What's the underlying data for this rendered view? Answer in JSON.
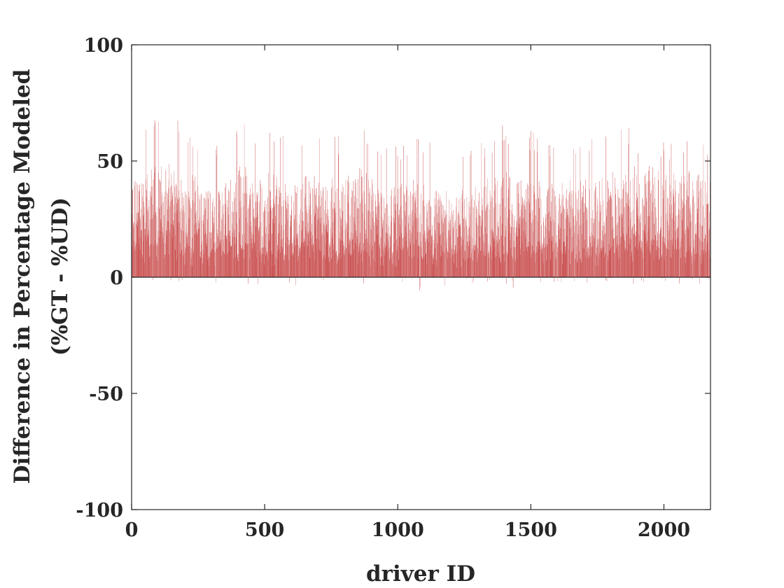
{
  "chart_data": {
    "type": "bar",
    "title": "",
    "xlabel": "driver ID",
    "ylabel": [
      "Difference in Percentage Modeled",
      "(%GT - %UD)"
    ],
    "xlim": [
      0,
      2175
    ],
    "ylim": [
      -100,
      100
    ],
    "x_ticks": [
      0,
      500,
      1000,
      1500,
      2000
    ],
    "x_tick_labels": [
      "0",
      "500",
      "1000",
      "1500",
      "2000"
    ],
    "y_ticks": [
      -100,
      -50,
      0,
      50,
      100
    ],
    "y_tick_labels": [
      "-100",
      "-50",
      "0",
      "50",
      "100"
    ],
    "grid": false,
    "n_drivers": 2175,
    "bar_color": "#c03030",
    "series": [
      {
        "x": [
          0,
          50,
          100,
          150,
          200,
          250,
          300,
          350,
          400,
          450,
          500,
          550,
          600,
          650,
          700,
          750,
          800,
          850,
          900,
          950,
          1000,
          1050,
          1100,
          1150,
          1200,
          1250,
          1300,
          1350,
          1400,
          1450,
          1500,
          1550,
          1600,
          1650,
          1700,
          1750,
          1800,
          1850,
          1900,
          1950,
          2000,
          2050,
          2100,
          2150
        ],
        "values_max": [
          62,
          70,
          68,
          70,
          65,
          58,
          55,
          60,
          66,
          68,
          62,
          63,
          60,
          58,
          62,
          60,
          64,
          68,
          58,
          56,
          60,
          58,
          62,
          54,
          52,
          56,
          58,
          60,
          66,
          58,
          64,
          58,
          56,
          62,
          60,
          64,
          62,
          66,
          62,
          64,
          60,
          58,
          60,
          58
        ],
        "values_typical": [
          22,
          24,
          23,
          24,
          22,
          20,
          18,
          21,
          24,
          23,
          22,
          21,
          20,
          21,
          22,
          21,
          22,
          23,
          20,
          19,
          20,
          19,
          20,
          18,
          17,
          18,
          19,
          21,
          23,
          20,
          22,
          20,
          19,
          21,
          21,
          22,
          22,
          23,
          22,
          24,
          22,
          21,
          23,
          22
        ],
        "values_min": [
          -6,
          -8,
          -13,
          -4,
          -3,
          -4,
          -4,
          -3,
          -3,
          -4,
          -3,
          -3,
          -3,
          -6,
          -3,
          -3,
          -3,
          -7,
          -12,
          -3,
          -3,
          -3,
          -11,
          -6,
          -3,
          -3,
          -3,
          -3,
          -10,
          -3,
          -7,
          -3,
          -3,
          -3,
          -3,
          -3,
          -3,
          -3,
          -3,
          -3,
          -3,
          -3,
          -3,
          -3
        ]
      }
    ]
  }
}
